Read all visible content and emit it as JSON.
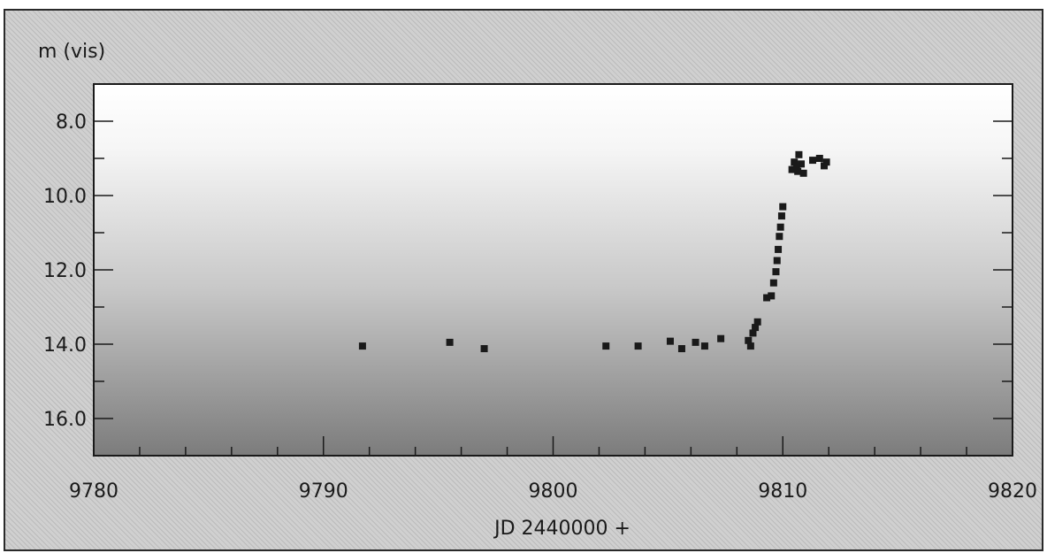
{
  "chart_data": {
    "type": "scatter",
    "title": "",
    "xlabel": "JD 2440000 +",
    "ylabel": "m (vis)",
    "xlim": [
      9780,
      9820
    ],
    "ylim": [
      17.0,
      7.0
    ],
    "y_inverted": true,
    "x_ticks": [
      9780,
      9790,
      9800,
      9810,
      9820
    ],
    "x_tick_labels": [
      "9780",
      "9790",
      "9800",
      "9810",
      "9820"
    ],
    "y_ticks": [
      8.0,
      10.0,
      12.0,
      14.0,
      16.0
    ],
    "y_tick_labels": [
      "8.0",
      "10.0",
      "12.0",
      "14.0",
      "16.0"
    ],
    "grid": false,
    "series": [
      {
        "points": [
          [
            9791.7,
            14.05
          ],
          [
            9795.5,
            13.95
          ],
          [
            9797.0,
            14.12
          ],
          [
            9802.3,
            14.05
          ],
          [
            9803.7,
            14.05
          ],
          [
            9805.1,
            13.92
          ],
          [
            9805.6,
            14.12
          ],
          [
            9806.2,
            13.95
          ],
          [
            9806.6,
            14.05
          ],
          [
            9807.3,
            13.85
          ],
          [
            9808.5,
            13.9
          ],
          [
            9808.6,
            14.05
          ],
          [
            9808.7,
            13.7
          ],
          [
            9808.8,
            13.55
          ],
          [
            9808.9,
            13.4
          ],
          [
            9809.3,
            12.75
          ],
          [
            9809.5,
            12.7
          ],
          [
            9809.6,
            12.35
          ],
          [
            9809.7,
            12.05
          ],
          [
            9809.75,
            11.75
          ],
          [
            9809.8,
            11.45
          ],
          [
            9809.85,
            11.1
          ],
          [
            9809.9,
            10.85
          ],
          [
            9809.95,
            10.55
          ],
          [
            9810.0,
            10.3
          ],
          [
            9810.4,
            9.3
          ],
          [
            9810.5,
            9.1
          ],
          [
            9810.6,
            9.25
          ],
          [
            9810.7,
            8.9
          ],
          [
            9810.8,
            9.15
          ],
          [
            9810.9,
            9.4
          ],
          [
            9810.65,
            9.35
          ],
          [
            9811.3,
            9.05
          ],
          [
            9811.6,
            9.0
          ],
          [
            9811.8,
            9.2
          ],
          [
            9811.9,
            9.1
          ]
        ]
      }
    ]
  }
}
